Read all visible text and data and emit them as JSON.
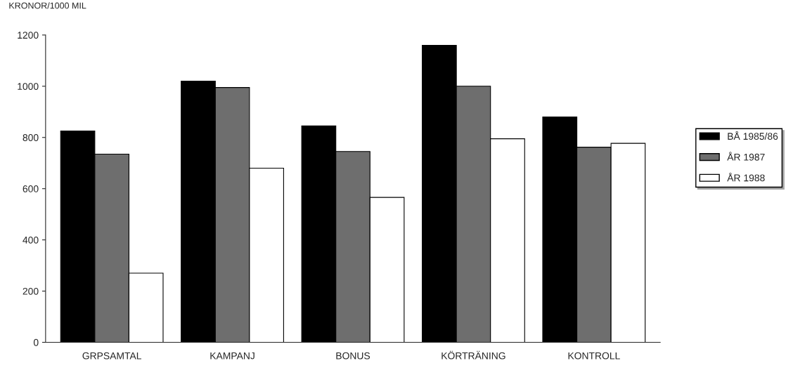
{
  "chart_data": {
    "type": "bar",
    "ylabel": "KRONOR/1000 MIL",
    "categories": [
      "GRPSAMTAL",
      "KAMPANJ",
      "BONUS",
      "KÖRTRÄNING",
      "KONTROLL"
    ],
    "series": [
      {
        "name": "BÅ 1985/86",
        "color": "#000000",
        "values": [
          825,
          1020,
          845,
          1160,
          880
        ]
      },
      {
        "name": "ÅR 1987",
        "color": "#6e6e6e",
        "values": [
          735,
          995,
          745,
          1000,
          762
        ]
      },
      {
        "name": "ÅR 1988",
        "color": "#ffffff",
        "values": [
          270,
          680,
          566,
          795,
          777
        ]
      }
    ],
    "ylim": [
      0,
      1200
    ],
    "yticks": [
      0,
      200,
      400,
      600,
      800,
      1000,
      1200
    ],
    "grid": false,
    "legend": "right"
  }
}
